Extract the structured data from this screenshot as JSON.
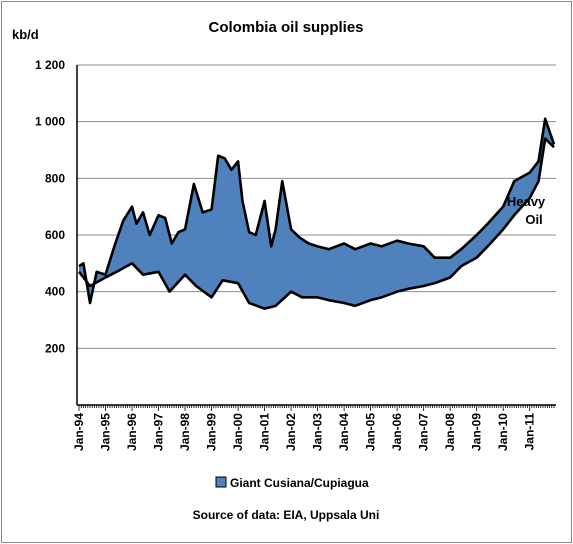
{
  "chart_data": {
    "type": "area",
    "title": "Colombia oil supplies",
    "ylabel": "kb/d",
    "xlabel": "",
    "ylim": [
      0,
      1200
    ],
    "yticks": [
      "200",
      "400",
      "600",
      "800",
      "1 000",
      "1 200"
    ],
    "ytick_values": [
      200,
      400,
      600,
      800,
      1000,
      1200
    ],
    "xticks": [
      "Jan-94",
      "Jan-95",
      "Jan-96",
      "Jan-97",
      "Jan-98",
      "Jan-99",
      "Jan-00",
      "Jan-01",
      "Jan-02",
      "Jan-03",
      "Jan-04",
      "Jan-05",
      "Jan-06",
      "Jan-07",
      "Jan-08",
      "Jan-09",
      "Jan-10",
      "Jan-11"
    ],
    "x_start": "1994-01",
    "x_end": "2011-12",
    "grid": "horizontal",
    "legend_position": "bottom",
    "series": [
      {
        "name": "Giant Cusiana/Cupiagua",
        "color": "#4f81bd",
        "upper": {
          "x": [
            "1994-01",
            "1994-03",
            "1994-06",
            "1994-09",
            "1995-01",
            "1995-05",
            "1995-09",
            "1996-01",
            "1996-03",
            "1996-06",
            "1996-09",
            "1997-01",
            "1997-04",
            "1997-07",
            "1997-10",
            "1998-01",
            "1998-05",
            "1998-09",
            "1999-01",
            "1999-04",
            "1999-07",
            "1999-10",
            "2000-01",
            "2000-03",
            "2000-06",
            "2000-09",
            "2001-01",
            "2001-04",
            "2001-06",
            "2001-09",
            "2002-01",
            "2002-05",
            "2002-09",
            "2003-01",
            "2003-06",
            "2004-01",
            "2004-06",
            "2005-01",
            "2005-06",
            "2006-01",
            "2006-06",
            "2007-01",
            "2007-06",
            "2008-01",
            "2008-06",
            "2009-01",
            "2009-06",
            "2010-01",
            "2010-06",
            "2011-01",
            "2011-05",
            "2011-08",
            "2011-12"
          ],
          "y": [
            490,
            500,
            360,
            470,
            460,
            560,
            650,
            700,
            640,
            680,
            600,
            670,
            660,
            570,
            610,
            620,
            780,
            680,
            690,
            880,
            870,
            830,
            860,
            720,
            610,
            600,
            720,
            560,
            620,
            790,
            620,
            590,
            570,
            560,
            550,
            570,
            550,
            570,
            560,
            580,
            570,
            560,
            520,
            520,
            550,
            600,
            640,
            700,
            790,
            820,
            860,
            1010,
            920
          ]
        },
        "lower": {
          "x": [
            "1994-01",
            "1994-06",
            "1995-01",
            "1995-06",
            "1996-01",
            "1996-06",
            "1997-01",
            "1997-06",
            "1998-01",
            "1998-06",
            "1999-01",
            "1999-06",
            "2000-01",
            "2000-06",
            "2001-01",
            "2001-06",
            "2002-01",
            "2002-06",
            "2003-01",
            "2003-06",
            "2004-01",
            "2004-06",
            "2005-01",
            "2005-06",
            "2006-01",
            "2006-06",
            "2007-01",
            "2007-06",
            "2008-01",
            "2008-06",
            "2009-01",
            "2009-06",
            "2010-01",
            "2010-06",
            "2011-01",
            "2011-05",
            "2011-08",
            "2011-12"
          ],
          "y": [
            470,
            420,
            450,
            470,
            500,
            460,
            470,
            400,
            460,
            420,
            380,
            440,
            430,
            360,
            340,
            350,
            400,
            380,
            380,
            370,
            360,
            350,
            370,
            380,
            400,
            410,
            420,
            430,
            450,
            490,
            520,
            560,
            620,
            670,
            730,
            790,
            940,
            910
          ]
        }
      }
    ],
    "annotations": [
      "Heavy",
      "Oil"
    ],
    "source": "Source of data: EIA, Uppsala Uni"
  }
}
